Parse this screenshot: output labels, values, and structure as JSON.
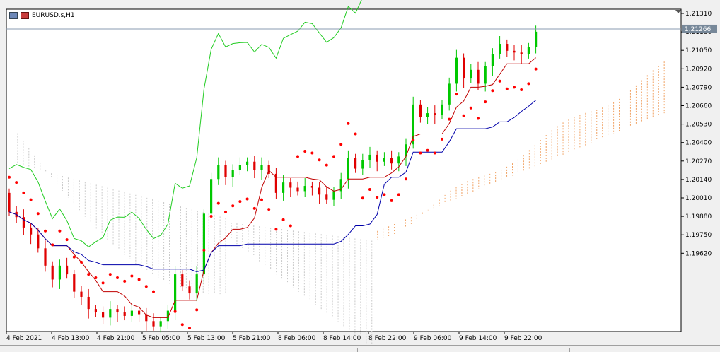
{
  "window": {
    "symbol_title": "EURUSD.s,H1"
  },
  "price_scale": {
    "labels": [
      "1.21310",
      "1.21180",
      "1.21050",
      "1.20920",
      "1.20790",
      "1.20660",
      "1.20530",
      "1.20400",
      "1.20270",
      "1.20140",
      "1.20010",
      "1.19880",
      "1.19750",
      "1.19620"
    ],
    "current_price": "1.21266"
  },
  "time_scale": {
    "labels": [
      "4 Feb 2021",
      "4 Feb 13:00",
      "4 Feb 21:00",
      "5 Feb 05:00",
      "5 Feb 13:00",
      "5 Feb 21:00",
      "8 Feb 06:00",
      "8 Feb 14:00",
      "8 Feb 22:00",
      "9 Feb 06:00",
      "9 Feb 14:00",
      "9 Feb 22:00"
    ]
  },
  "colors": {
    "bull": "#00c800",
    "bear": "#e00000",
    "tenkan": "#c00000",
    "kijun": "#0000aa",
    "chikou": "#22cc22",
    "sar": "#ff0000",
    "cloud_bull": "#f0a060",
    "cloud_bear": "#c8c8c8",
    "grid": "#000000",
    "current_price_bg": "#778899"
  },
  "chart_data": {
    "type": "candlestick",
    "symbol": "EURUSD.s",
    "timeframe": "H1",
    "ylim": [
      1.1952,
      1.2138
    ],
    "current_price": 1.21266,
    "x": [
      "4 Feb 2021",
      "4 Feb 13:00",
      "4 Feb 21:00",
      "5 Feb 05:00",
      "5 Feb 13:00",
      "5 Feb 21:00",
      "8 Feb 06:00",
      "8 Feb 14:00",
      "8 Feb 22:00",
      "9 Feb 06:00",
      "9 Feb 14:00",
      "9 Feb 22:00"
    ],
    "candles_close": [
      1.2021,
      1.2018,
      1.2012,
      1.2008,
      1.2,
      1.199,
      1.1982,
      1.199,
      1.1985,
      1.1975,
      1.1972,
      1.1965,
      1.1963,
      1.196,
      1.1965,
      1.1963,
      1.1961,
      1.1964,
      1.1962,
      1.1958,
      1.1955,
      1.1958,
      1.1964,
      1.1985,
      1.1978,
      1.1974,
      1.1985,
      1.202,
      1.204,
      1.2048,
      1.2041,
      1.2045,
      1.2048,
      1.205,
      1.2045,
      1.2048,
      1.2043,
      1.2032,
      1.2038,
      1.2035,
      1.2033,
      1.2036,
      1.2035,
      1.2031,
      1.2028,
      1.2033,
      1.204,
      1.2052,
      1.2046,
      1.2051,
      1.2054,
      1.205,
      1.2052,
      1.2049,
      1.2053,
      1.206,
      1.2083,
      1.2076,
      1.2078,
      1.2077,
      1.2083,
      1.2095,
      1.211,
      1.2098,
      1.2103,
      1.2095,
      1.2105,
      1.2112,
      1.2118,
      1.2114,
      1.2113,
      1.2112,
      1.2116,
      1.2125
    ]
  }
}
